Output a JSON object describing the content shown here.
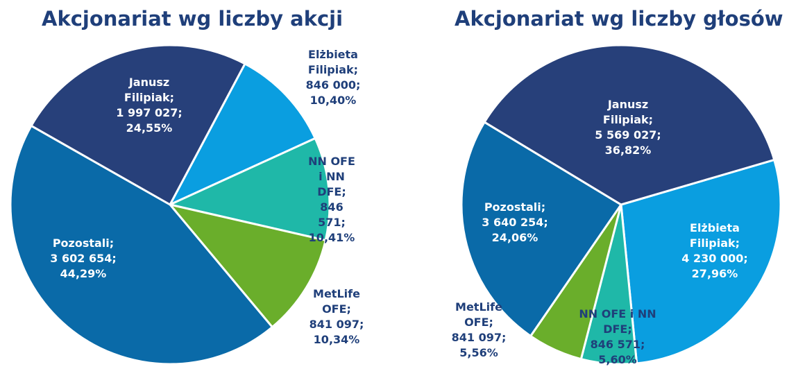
{
  "chart_data": [
    {
      "type": "pie",
      "title": "Akcjonariat wg liczby akcji",
      "categories": [
        "Elżbieta Filipiak;",
        "NN OFE i NN DFE;",
        "MetLife OFE;",
        "Pozostali;",
        "Janusz Filipiak;"
      ],
      "shares": [
        846000,
        846571,
        841097,
        3602654,
        1997027
      ],
      "shares_labels": [
        "846 000;",
        "846 571;",
        "841 097;",
        "3 602 654;",
        "1 997 027;"
      ],
      "values": [
        10.4,
        10.41,
        10.34,
        44.29,
        24.55
      ],
      "value_labels": [
        "10,40%",
        "10,41%",
        "10,34%",
        "44,29%",
        "24,55%"
      ],
      "colors": [
        "#0a9ee0",
        "#1fb8a8",
        "#6aae2b",
        "#0a6aa8",
        "#27407a"
      ]
    },
    {
      "type": "pie",
      "title": "Akcjonariat wg liczby głosów",
      "categories": [
        "Elżbieta Filipiak;",
        "NN OFE i NN DFE;",
        "MetLife OFE;",
        "Pozostali;",
        "Janusz Filipiak;"
      ],
      "shares": [
        4230000,
        846571,
        841097,
        3640254,
        5569027
      ],
      "shares_labels": [
        "4 230 000;",
        "846 571;",
        "841 097;",
        "3 640 254;",
        "5 569 027;"
      ],
      "values": [
        27.96,
        5.6,
        5.56,
        24.06,
        36.82
      ],
      "value_labels": [
        "27,96%",
        "5,60%",
        "5,56%",
        "24,06%",
        "36,82%"
      ],
      "colors": [
        "#0a9ee0",
        "#1fb8a8",
        "#6aae2b",
        "#0a6aa8",
        "#27407a"
      ]
    }
  ]
}
